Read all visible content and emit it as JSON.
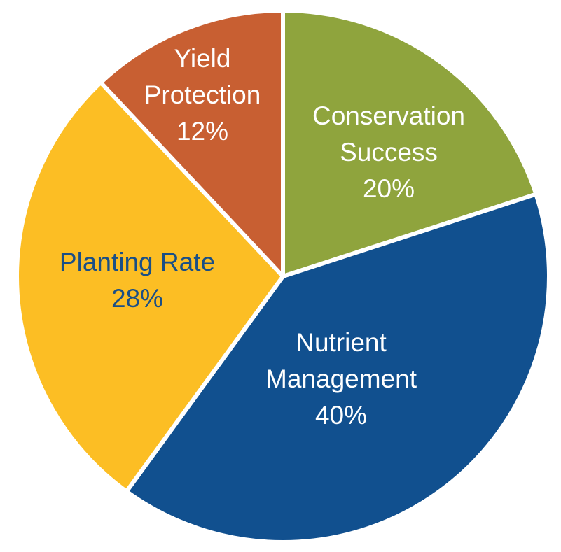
{
  "chart_data": {
    "type": "pie",
    "slices": [
      {
        "label_lines": [
          "Conservation",
          "Success"
        ],
        "value": 20,
        "value_label": "20%",
        "color": "#8fa43d",
        "text_color": "#ffffff"
      },
      {
        "label_lines": [
          "Nutrient",
          "Management"
        ],
        "value": 40,
        "value_label": "40%",
        "color": "#11508f",
        "text_color": "#ffffff"
      },
      {
        "label_lines": [
          "Planting Rate"
        ],
        "value": 28,
        "value_label": "28%",
        "color": "#fcbe24",
        "text_color": "#1a4f86"
      },
      {
        "label_lines": [
          "Yield",
          "Protection"
        ],
        "value": 12,
        "value_label": "12%",
        "color": "#c85f32",
        "text_color": "#ffffff"
      }
    ],
    "start_angle": 0,
    "direction": "clockwise",
    "separator_color": "#ffffff"
  }
}
